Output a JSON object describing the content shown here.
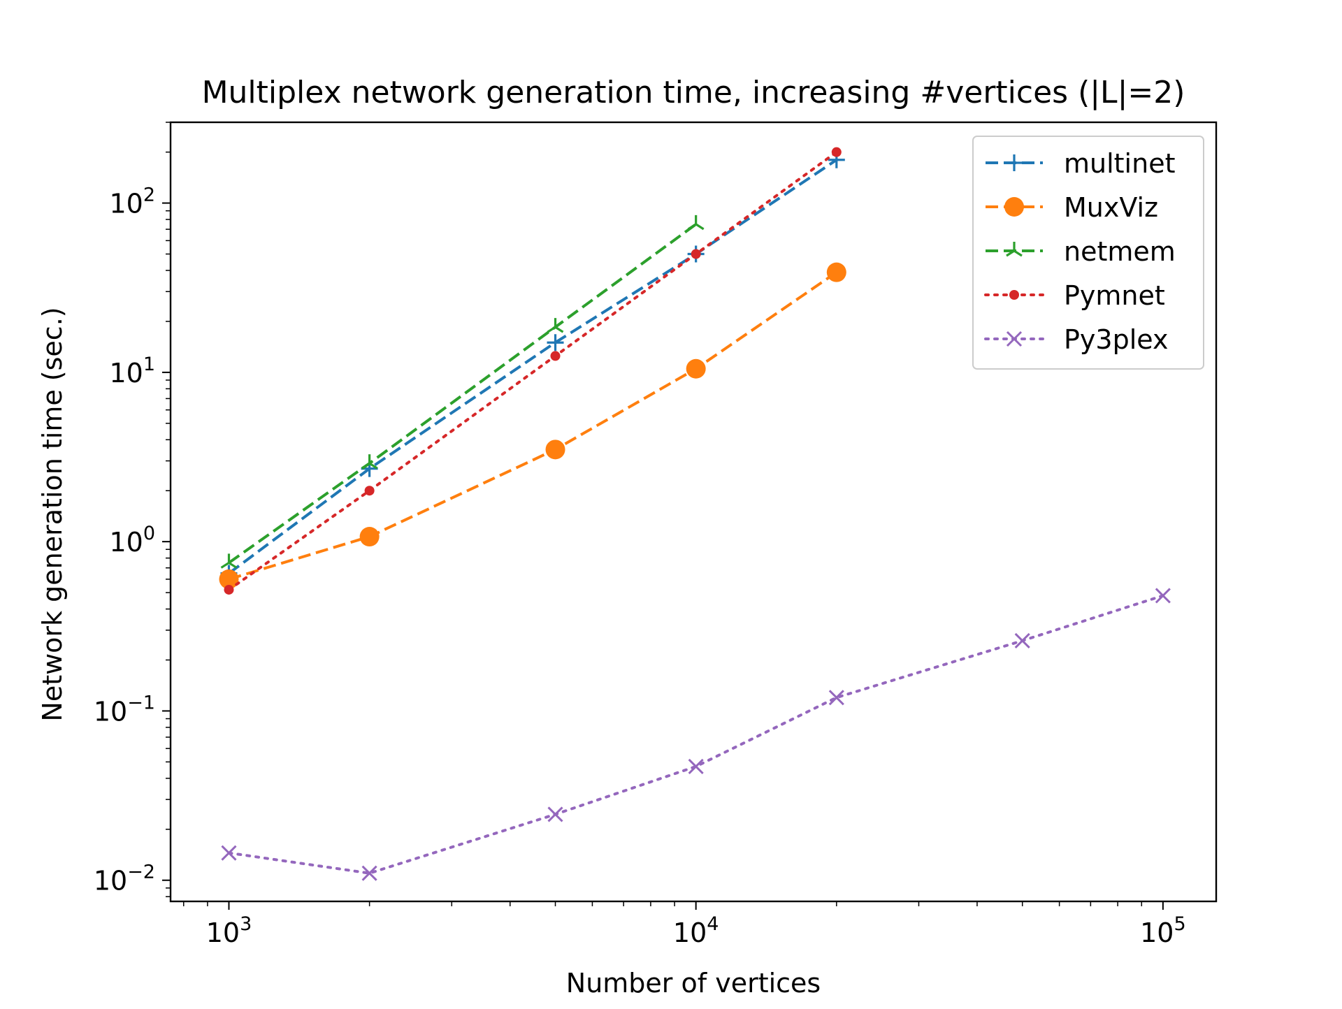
{
  "chart_data": {
    "type": "line",
    "title": "Multiplex network generation time, increasing #vertices (|L|=2)",
    "xlabel": "Number of vertices",
    "ylabel": "Network generation time (sec.)",
    "xscale": "log",
    "yscale": "log",
    "xlim": [
      750,
      130000
    ],
    "ylim": [
      0.0075,
      300
    ],
    "x_major_ticks": [
      {
        "value": 1000,
        "base": "10",
        "exp": "3"
      },
      {
        "value": 10000,
        "base": "10",
        "exp": "4"
      },
      {
        "value": 100000,
        "base": "10",
        "exp": "5"
      }
    ],
    "y_major_ticks": [
      {
        "value": 0.01,
        "base": "10",
        "exp": "−2"
      },
      {
        "value": 0.1,
        "base": "10",
        "exp": "−1"
      },
      {
        "value": 1,
        "base": "10",
        "exp": "0"
      },
      {
        "value": 10,
        "base": "10",
        "exp": "1"
      },
      {
        "value": 100,
        "base": "10",
        "exp": "2"
      }
    ],
    "grid": false,
    "legend_position": "top-right",
    "series": [
      {
        "name": "multinet",
        "color": "#1f77b4",
        "line": "dashed",
        "marker": "plus",
        "x": [
          1000,
          2000,
          5000,
          10000,
          20000
        ],
        "y": [
          0.65,
          2.7,
          15,
          50,
          180
        ]
      },
      {
        "name": "MuxViz",
        "color": "#ff7f0e",
        "line": "dashed",
        "marker": "circle",
        "x": [
          1000,
          2000,
          5000,
          10000,
          20000
        ],
        "y": [
          0.6,
          1.07,
          3.5,
          10.5,
          39
        ]
      },
      {
        "name": "netmem",
        "color": "#2ca02c",
        "line": "dashed",
        "marker": "tri",
        "x": [
          1000,
          2000,
          5000,
          10000
        ],
        "y": [
          0.75,
          2.9,
          18.5,
          75
        ]
      },
      {
        "name": "Pymnet",
        "color": "#d62728",
        "line": "dotted",
        "marker": "dot",
        "x": [
          1000,
          2000,
          5000,
          10000,
          20000
        ],
        "y": [
          0.52,
          2.0,
          12.5,
          50,
          200
        ]
      },
      {
        "name": "Py3plex",
        "color": "#9467bd",
        "line": "dotted",
        "marker": "x",
        "x": [
          1000,
          2000,
          5000,
          10000,
          20000,
          50000,
          100000
        ],
        "y": [
          0.0145,
          0.011,
          0.0245,
          0.047,
          0.12,
          0.26,
          0.48
        ]
      }
    ]
  }
}
